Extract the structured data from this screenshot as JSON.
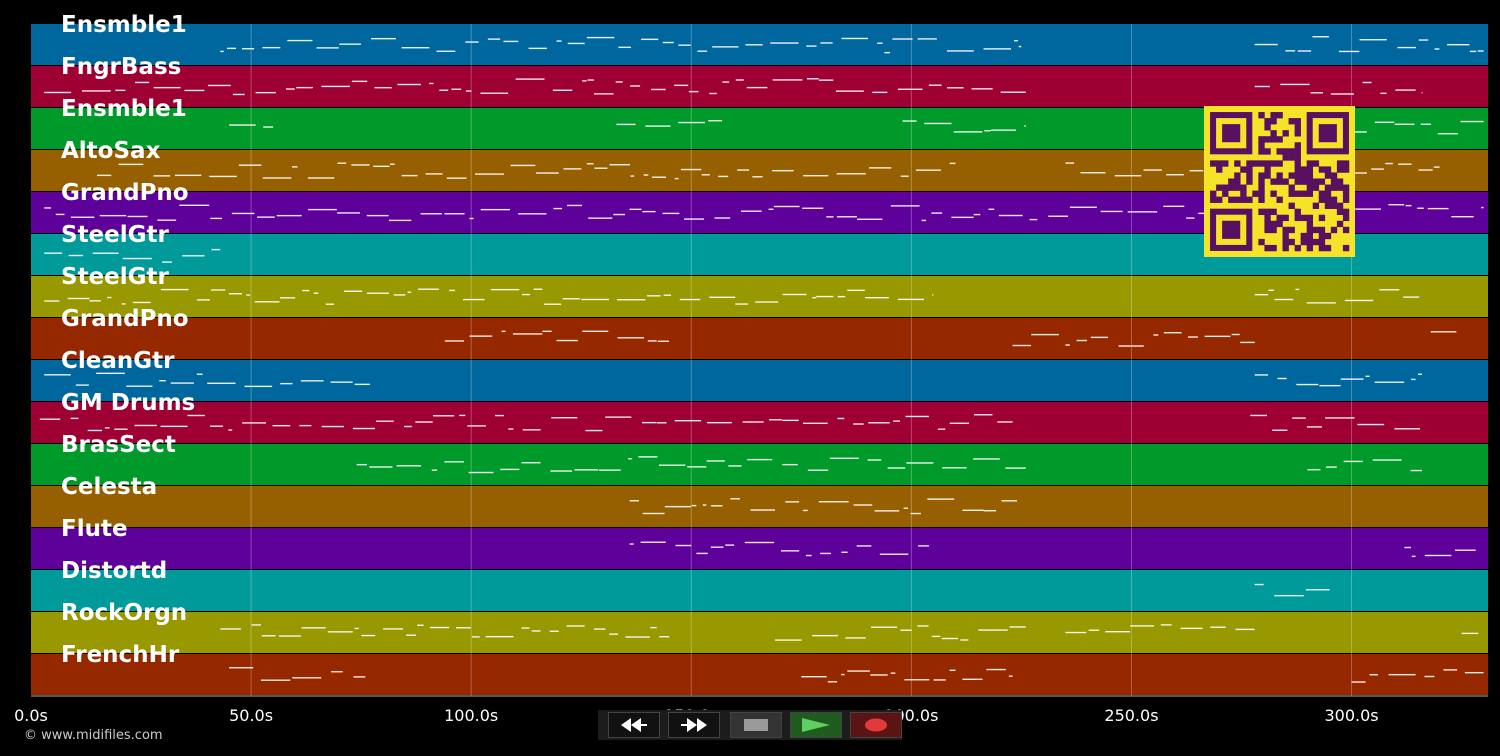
{
  "tracks": [
    {
      "name": "Ensmble1",
      "color": "#00679e"
    },
    {
      "name": "FngrBass",
      "color": "#9e0033"
    },
    {
      "name": "Ensmble1",
      "color": "#009a2a"
    },
    {
      "name": "AltoSax",
      "color": "#966000"
    },
    {
      "name": "GrandPno",
      "color": "#5e009a"
    },
    {
      "name": "SteelGtr",
      "color": "#009a9a"
    },
    {
      "name": "SteelGtr",
      "color": "#989800"
    },
    {
      "name": "GrandPno",
      "color": "#962800"
    },
    {
      "name": "CleanGtr",
      "color": "#00679e"
    },
    {
      "name": "GM Drums",
      "color": "#9e0033"
    },
    {
      "name": "BrasSect",
      "color": "#009a2a"
    },
    {
      "name": "Celesta",
      "color": "#966000"
    },
    {
      "name": "Flute",
      "color": "#5e009a"
    },
    {
      "name": "Distortd",
      "color": "#009a9a"
    },
    {
      "name": "RockOrgn",
      "color": "#989800"
    },
    {
      "name": "FrenchHr",
      "color": "#962800"
    }
  ],
  "time_axis": {
    "ticks": [
      "0.0s",
      "50.0s",
      "100.0s",
      "150.0s",
      "200.0s",
      "250.0s",
      "300.0s"
    ],
    "tick_values": [
      0,
      50,
      100,
      150,
      200,
      250,
      300
    ],
    "max_seconds": 331
  },
  "transport": {
    "rewind_icon": "rewind-icon",
    "fast_forward_icon": "fast-forward-icon",
    "stop_icon": "stop-icon",
    "play_icon": "play-icon",
    "record_icon": "record-icon"
  },
  "copyright": "© www.midifiles.com",
  "qr_code": {
    "icon": "qr-code-icon",
    "color": "#f5e32a",
    "module_color": "#5a1060"
  }
}
